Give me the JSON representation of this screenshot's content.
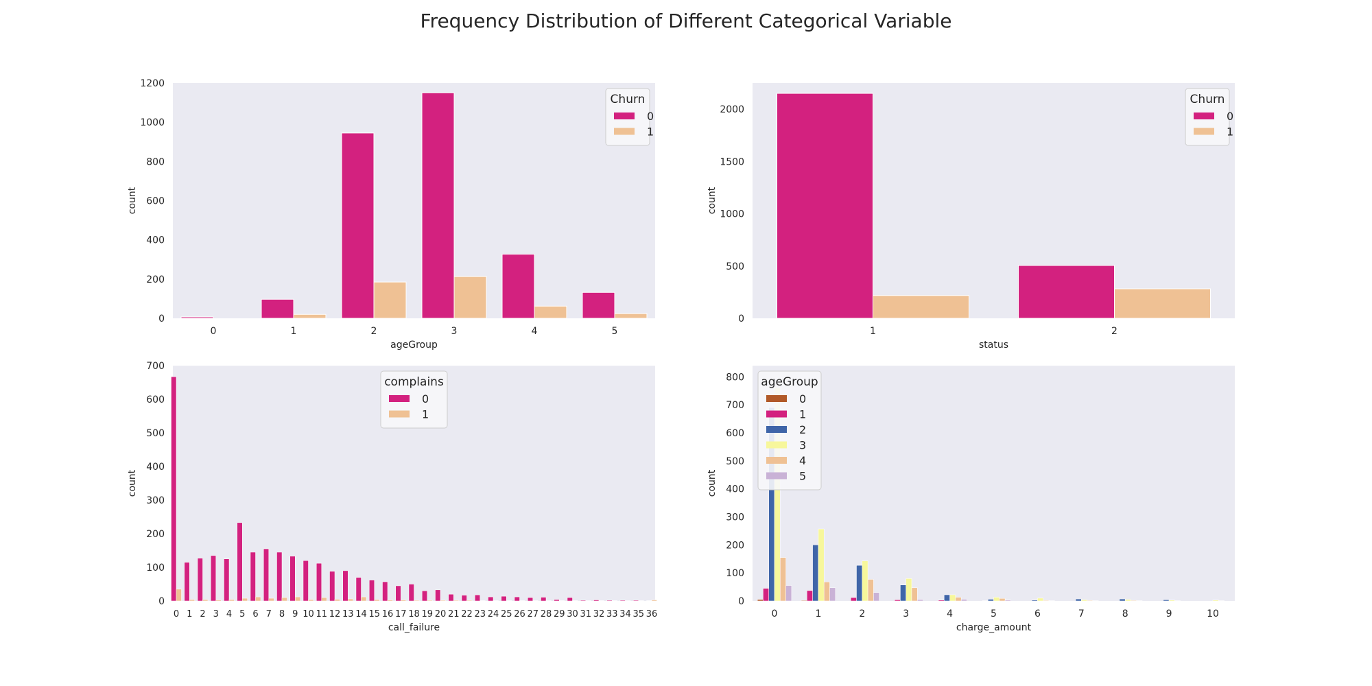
{
  "figure_title": "Frequency Distribution of Different Categorical Variable",
  "chart_data": [
    {
      "type": "bar",
      "xlabel": "ageGroup",
      "ylabel": "count",
      "ylim": [
        0,
        1200
      ],
      "yticks": [
        0,
        200,
        400,
        600,
        800,
        1000,
        1200
      ],
      "categories": [
        "0",
        "1",
        "2",
        "3",
        "4",
        "5"
      ],
      "legend": {
        "title": "Churn",
        "position": "upper right"
      },
      "series": [
        {
          "name": "0",
          "color": "#d3217f",
          "values": [
            7,
            97,
            945,
            1150,
            327,
            132
          ]
        },
        {
          "name": "1",
          "color": "#efc194",
          "values": [
            0,
            20,
            185,
            213,
            62,
            24
          ]
        }
      ]
    },
    {
      "type": "bar",
      "xlabel": "status",
      "ylabel": "count",
      "ylim": [
        0,
        2250
      ],
      "yticks": [
        0,
        500,
        1000,
        1500,
        2000
      ],
      "categories": [
        "1",
        "2"
      ],
      "legend": {
        "title": "Churn",
        "position": "upper right"
      },
      "series": [
        {
          "name": "0",
          "color": "#d3217f",
          "values": [
            2151,
            505
          ]
        },
        {
          "name": "1",
          "color": "#efc194",
          "values": [
            218,
            282
          ]
        }
      ]
    },
    {
      "type": "bar",
      "xlabel": "call_failure",
      "ylabel": "count",
      "ylim": [
        0,
        700
      ],
      "yticks": [
        0,
        100,
        200,
        300,
        400,
        500,
        600,
        700
      ],
      "categories": [
        "0",
        "1",
        "2",
        "3",
        "4",
        "5",
        "6",
        "7",
        "8",
        "9",
        "10",
        "11",
        "12",
        "13",
        "14",
        "15",
        "16",
        "17",
        "18",
        "19",
        "20",
        "21",
        "22",
        "23",
        "24",
        "25",
        "26",
        "27",
        "28",
        "29",
        "30",
        "31",
        "32",
        "33",
        "34",
        "35",
        "36"
      ],
      "legend": {
        "title": "complains",
        "position": "upper center"
      },
      "series": [
        {
          "name": "0",
          "color": "#d3217f",
          "values": [
            667,
            115,
            127,
            135,
            125,
            233,
            145,
            155,
            145,
            133,
            120,
            112,
            88,
            90,
            70,
            62,
            57,
            45,
            50,
            30,
            33,
            20,
            17,
            18,
            12,
            14,
            12,
            10,
            11,
            4,
            10,
            2,
            3,
            2,
            2,
            2,
            1
          ]
        },
        {
          "name": "1",
          "color": "#efc194",
          "values": [
            35,
            4,
            4,
            3,
            4,
            8,
            12,
            8,
            10,
            12,
            4,
            10,
            5,
            6,
            12,
            4,
            3,
            3,
            2,
            2,
            2,
            2,
            2,
            1,
            1,
            1,
            1,
            1,
            1,
            1,
            1,
            1,
            1,
            1,
            1,
            1,
            3
          ]
        }
      ]
    },
    {
      "type": "bar",
      "xlabel": "charge_amount",
      "ylabel": "count",
      "ylim": [
        0,
        840
      ],
      "yticks": [
        0,
        100,
        200,
        300,
        400,
        500,
        600,
        700,
        800
      ],
      "categories": [
        "0",
        "1",
        "2",
        "3",
        "4",
        "5",
        "6",
        "7",
        "8",
        "9",
        "10"
      ],
      "legend": {
        "title": "ageGroup",
        "position": "upper left"
      },
      "series": [
        {
          "name": "0",
          "color": "#b15928",
          "values": [
            5,
            2,
            0,
            0,
            0,
            0,
            0,
            0,
            0,
            0,
            0
          ]
        },
        {
          "name": "1",
          "color": "#d3217f",
          "values": [
            45,
            37,
            12,
            4,
            3,
            1,
            0,
            0,
            0,
            0,
            0
          ]
        },
        {
          "name": "2",
          "color": "#3f65a8",
          "values": [
            690,
            200,
            127,
            57,
            22,
            6,
            3,
            7,
            7,
            4,
            0
          ]
        },
        {
          "name": "3",
          "color": "#f7f79b",
          "values": [
            760,
            257,
            143,
            80,
            22,
            13,
            10,
            4,
            5,
            3,
            3
          ]
        },
        {
          "name": "4",
          "color": "#efc194",
          "values": [
            155,
            68,
            77,
            47,
            13,
            9,
            2,
            2,
            2,
            1,
            1
          ]
        },
        {
          "name": "5",
          "color": "#c9b2d6",
          "values": [
            55,
            47,
            30,
            5,
            6,
            3,
            1,
            1,
            1,
            0,
            0
          ]
        }
      ]
    }
  ]
}
